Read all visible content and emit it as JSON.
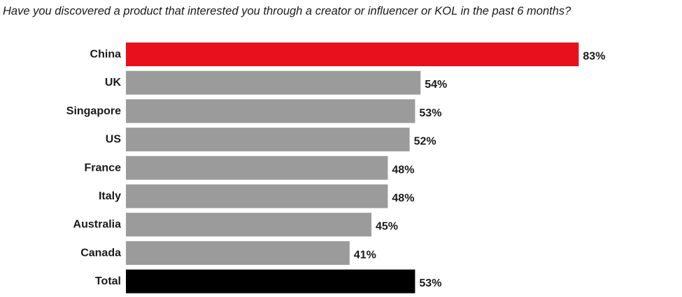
{
  "chart_data": {
    "type": "bar",
    "orientation": "horizontal",
    "title": "Have you discovered a product that interested you through a creator or influencer or KOL in the past 6 months?",
    "categories": [
      "China",
      "UK",
      "Singapore",
      "US",
      "France",
      "Italy",
      "Australia",
      "Canada",
      "Total"
    ],
    "values": [
      83,
      54,
      53,
      52,
      48,
      48,
      45,
      41,
      53
    ],
    "value_suffix": "%",
    "colors": [
      "#e8101c",
      "#9b9b9b",
      "#9b9b9b",
      "#9b9b9b",
      "#9b9b9b",
      "#9b9b9b",
      "#9b9b9b",
      "#9b9b9b",
      "#000000"
    ],
    "xlim": [
      0,
      100
    ],
    "grid": false,
    "legend": "none"
  }
}
